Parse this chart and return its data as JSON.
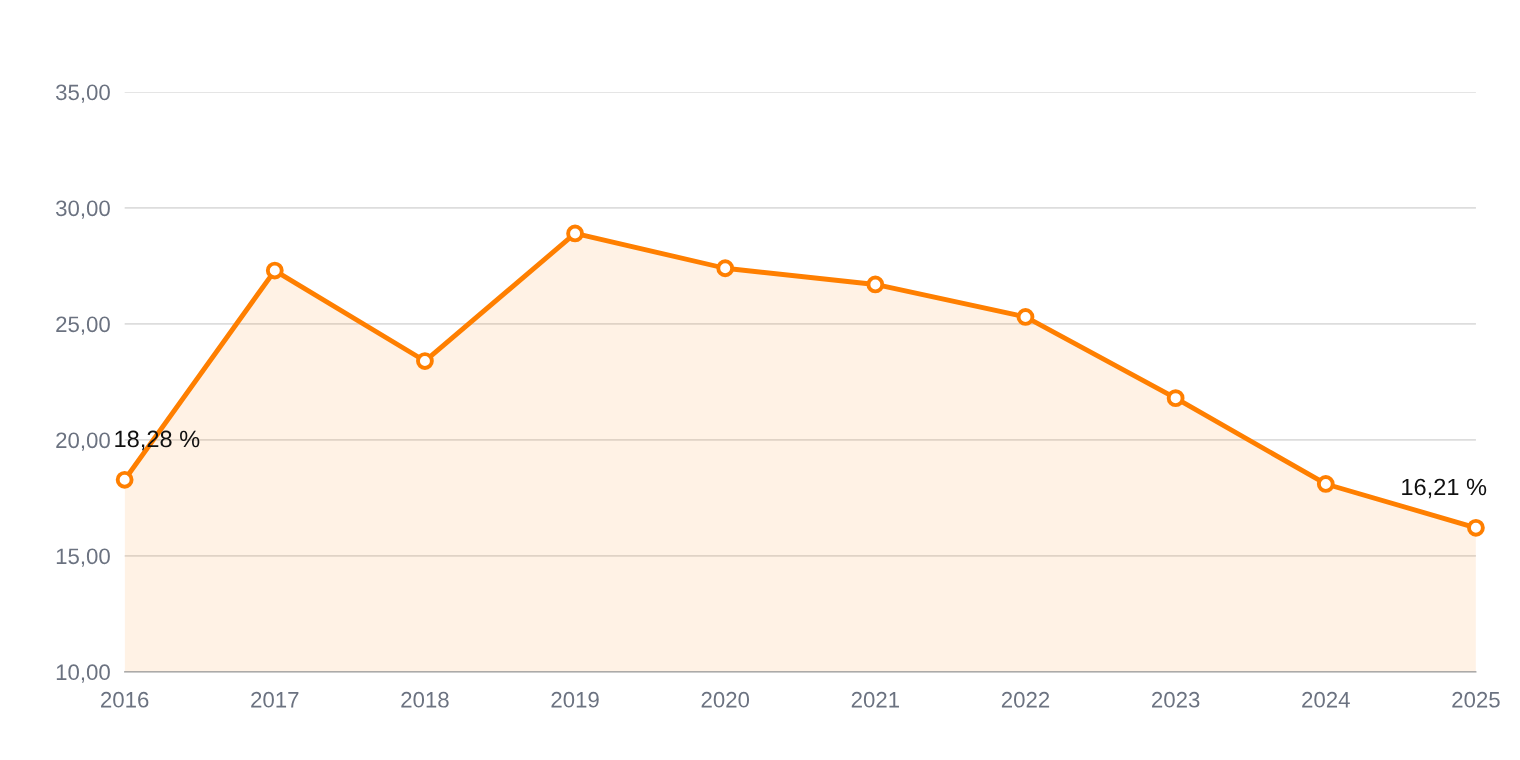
{
  "chart_data": {
    "type": "area",
    "categories": [
      "2016",
      "2017",
      "2018",
      "2019",
      "2020",
      "2021",
      "2022",
      "2023",
      "2024",
      "2025"
    ],
    "series": [
      {
        "color": "#ff7f00",
        "values": [
          18.28,
          27.3,
          23.4,
          28.9,
          27.4,
          26.7,
          25.3,
          21.8,
          18.1,
          16.21
        ],
        "value_labels": [
          "18,28 %",
          null,
          null,
          null,
          null,
          null,
          null,
          null,
          null,
          "16,21 %"
        ]
      }
    ],
    "ylim": [
      10,
      35
    ],
    "yticks": [
      {
        "value": 10,
        "label": "10,00"
      },
      {
        "value": 15,
        "label": "15,00"
      },
      {
        "value": 20,
        "label": "20,00"
      },
      {
        "value": 25,
        "label": "25,00"
      },
      {
        "value": 30,
        "label": "30,00"
      },
      {
        "value": 35,
        "label": "35,00"
      }
    ],
    "grid": "y",
    "marker": "circle",
    "line_style": "solid",
    "legend": false
  }
}
